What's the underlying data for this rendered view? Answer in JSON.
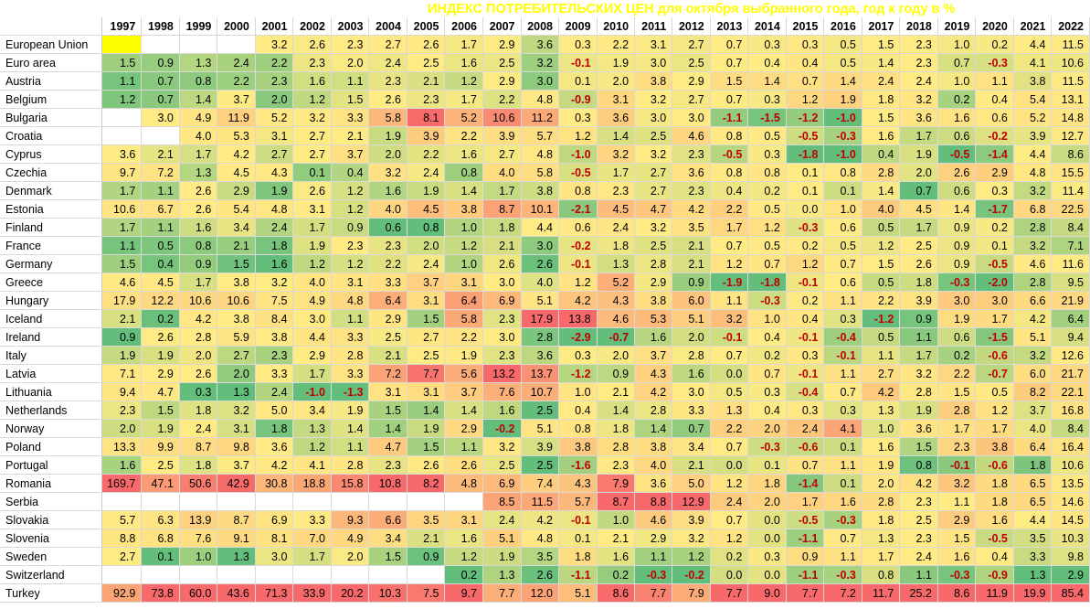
{
  "chart_data": {
    "type": "table",
    "title": "ИНДЕКС ПОТРЕБИТЕЛЬСКИХ ЦЕН для октября выбранного года, год к году в %",
    "years": [
      "1997",
      "1998",
      "1999",
      "2000",
      "2001",
      "2002",
      "2003",
      "2004",
      "2005",
      "2006",
      "2007",
      "2008",
      "2009",
      "2010",
      "2011",
      "2012",
      "2013",
      "2014",
      "2015",
      "2016",
      "2017",
      "2018",
      "2019",
      "2020",
      "2021",
      "2022"
    ],
    "rows": [
      {
        "country": "European Union",
        "values": [
          "",
          "",
          "",
          "",
          "3.2",
          "2.6",
          "2.3",
          "2.7",
          "2.6",
          "1.7",
          "2.9",
          "3.6",
          "0.3",
          "2.2",
          "3.1",
          "2.7",
          "0.7",
          "0.3",
          "0.3",
          "0.5",
          "1.5",
          "2.3",
          "1.0",
          "0.2",
          "4.4",
          "11.5"
        ]
      },
      {
        "country": "Euro area",
        "values": [
          "1.5",
          "0.9",
          "1.3",
          "2.4",
          "2.2",
          "2.3",
          "2.0",
          "2.4",
          "2.5",
          "1.6",
          "2.5",
          "3.2",
          "-0.1",
          "1.9",
          "3.0",
          "2.5",
          "0.7",
          "0.4",
          "0.4",
          "0.5",
          "1.4",
          "2.3",
          "0.7",
          "-0.3",
          "4.1",
          "10.6"
        ]
      },
      {
        "country": "Austria",
        "values": [
          "1.1",
          "0.7",
          "0.8",
          "2.2",
          "2.3",
          "1.6",
          "1.1",
          "2.3",
          "2.1",
          "1.2",
          "2.9",
          "3.0",
          "0.1",
          "2.0",
          "3.8",
          "2.9",
          "1.5",
          "1.4",
          "0.7",
          "1.4",
          "2.4",
          "2.4",
          "1.0",
          "1.1",
          "3.8",
          "11.5"
        ]
      },
      {
        "country": "Belgium",
        "values": [
          "1.2",
          "0.7",
          "1.4",
          "3.7",
          "2.0",
          "1.2",
          "1.5",
          "2.6",
          "2.3",
          "1.7",
          "2.2",
          "4.8",
          "-0.9",
          "3.1",
          "3.2",
          "2.7",
          "0.7",
          "0.3",
          "1.2",
          "1.9",
          "1.8",
          "3.2",
          "0.2",
          "0.4",
          "5.4",
          "13.1"
        ]
      },
      {
        "country": "Bulgaria",
        "values": [
          "",
          "3.0",
          "4.9",
          "11.9",
          "5.2",
          "3.2",
          "3.3",
          "5.8",
          "8.1",
          "5.2",
          "10.6",
          "11.2",
          "0.3",
          "3.6",
          "3.0",
          "3.0",
          "-1.1",
          "-1.5",
          "-1.2",
          "-1.0",
          "1.5",
          "3.6",
          "1.6",
          "0.6",
          "5.2",
          "14.8"
        ]
      },
      {
        "country": "Croatia",
        "values": [
          "",
          "",
          "4.0",
          "5.3",
          "3.1",
          "2.7",
          "2.1",
          "1.9",
          "3.9",
          "2.2",
          "3.9",
          "5.7",
          "1.2",
          "1.4",
          "2.5",
          "4.6",
          "0.8",
          "0.5",
          "-0.5",
          "-0.3",
          "1.6",
          "1.7",
          "0.6",
          "-0.2",
          "3.9",
          "12.7"
        ]
      },
      {
        "country": "Cyprus",
        "values": [
          "3.6",
          "2.1",
          "1.7",
          "4.2",
          "2.7",
          "2.7",
          "3.7",
          "2.0",
          "2.2",
          "1.6",
          "2.7",
          "4.8",
          "-1.0",
          "3.2",
          "3.2",
          "2.3",
          "-0.5",
          "0.3",
          "-1.8",
          "-1.0",
          "0.4",
          "1.9",
          "-0.5",
          "-1.4",
          "4.4",
          "8.6"
        ]
      },
      {
        "country": "Czechia",
        "values": [
          "9.7",
          "7.2",
          "1.3",
          "4.5",
          "4.3",
          "0.1",
          "0.4",
          "3.2",
          "2.4",
          "0.8",
          "4.0",
          "5.8",
          "-0.5",
          "1.7",
          "2.7",
          "3.6",
          "0.8",
          "0.8",
          "0.1",
          "0.8",
          "2.8",
          "2.0",
          "2.6",
          "2.9",
          "4.8",
          "15.5"
        ]
      },
      {
        "country": "Denmark",
        "values": [
          "1.7",
          "1.1",
          "2.6",
          "2.9",
          "1.9",
          "2.6",
          "1.2",
          "1.6",
          "1.9",
          "1.4",
          "1.7",
          "3.8",
          "0.8",
          "2.3",
          "2.7",
          "2.3",
          "0.4",
          "0.2",
          "0.1",
          "0.1",
          "1.4",
          "0.7",
          "0.6",
          "0.3",
          "3.2",
          "11.4"
        ]
      },
      {
        "country": "Estonia",
        "values": [
          "10.6",
          "6.7",
          "2.6",
          "5.4",
          "4.8",
          "3.1",
          "1.2",
          "4.0",
          "4.5",
          "3.8",
          "8.7",
          "10.1",
          "-2.1",
          "4.5",
          "4.7",
          "4.2",
          "2.2",
          "0.5",
          "0.0",
          "1.0",
          "4.0",
          "4.5",
          "1.4",
          "-1.7",
          "6.8",
          "22.5"
        ]
      },
      {
        "country": "Finland",
        "values": [
          "1.7",
          "1.1",
          "1.6",
          "3.4",
          "2.4",
          "1.7",
          "0.9",
          "0.6",
          "0.8",
          "1.0",
          "1.8",
          "4.4",
          "0.6",
          "2.4",
          "3.2",
          "3.5",
          "1.7",
          "1.2",
          "-0.3",
          "0.6",
          "0.5",
          "1.7",
          "0.9",
          "0.2",
          "2.8",
          "8.4"
        ]
      },
      {
        "country": "France",
        "values": [
          "1.1",
          "0.5",
          "0.8",
          "2.1",
          "1.8",
          "1.9",
          "2.3",
          "2.3",
          "2.0",
          "1.2",
          "2.1",
          "3.0",
          "-0.2",
          "1.8",
          "2.5",
          "2.1",
          "0.7",
          "0.5",
          "0.2",
          "0.5",
          "1.2",
          "2.5",
          "0.9",
          "0.1",
          "3.2",
          "7.1"
        ]
      },
      {
        "country": "Germany",
        "values": [
          "1.5",
          "0.4",
          "0.9",
          "1.5",
          "1.6",
          "1.2",
          "1.2",
          "2.2",
          "2.4",
          "1.0",
          "2.6",
          "2.6",
          "-0.1",
          "1.3",
          "2.8",
          "2.1",
          "1.2",
          "0.7",
          "1.2",
          "0.7",
          "1.5",
          "2.6",
          "0.9",
          "-0.5",
          "4.6",
          "11.6"
        ]
      },
      {
        "country": "Greece",
        "values": [
          "4.6",
          "4.5",
          "1.7",
          "3.8",
          "3.2",
          "4.0",
          "3.1",
          "3.3",
          "3.7",
          "3.1",
          "3.0",
          "4.0",
          "1.2",
          "5.2",
          "2.9",
          "0.9",
          "-1.9",
          "-1.8",
          "-0.1",
          "0.6",
          "0.5",
          "1.8",
          "-0.3",
          "-2.0",
          "2.8",
          "9.5"
        ]
      },
      {
        "country": "Hungary",
        "values": [
          "17.9",
          "12.2",
          "10.6",
          "10.6",
          "7.5",
          "4.9",
          "4.8",
          "6.4",
          "3.1",
          "6.4",
          "6.9",
          "5.1",
          "4.2",
          "4.3",
          "3.8",
          "6.0",
          "1.1",
          "-0.3",
          "0.2",
          "1.1",
          "2.2",
          "3.9",
          "3.0",
          "3.0",
          "6.6",
          "21.9"
        ]
      },
      {
        "country": "Iceland",
        "values": [
          "2.1",
          "0.2",
          "4.2",
          "3.8",
          "8.4",
          "3.0",
          "1.1",
          "2.9",
          "1.5",
          "5.8",
          "2.3",
          "17.9",
          "13.8",
          "4.6",
          "5.3",
          "5.1",
          "3.2",
          "1.0",
          "0.4",
          "0.3",
          "-1.2",
          "0.9",
          "1.9",
          "1.7",
          "4.2",
          "6.4"
        ]
      },
      {
        "country": "Ireland",
        "values": [
          "0.9",
          "2.6",
          "2.8",
          "5.9",
          "3.8",
          "4.4",
          "3.3",
          "2.5",
          "2.7",
          "2.2",
          "3.0",
          "2.8",
          "-2.9",
          "-0.7",
          "1.6",
          "2.0",
          "-0.1",
          "0.4",
          "-0.1",
          "-0.4",
          "0.5",
          "1.1",
          "0.6",
          "-1.5",
          "5.1",
          "9.4"
        ]
      },
      {
        "country": "Italy",
        "values": [
          "1.9",
          "1.9",
          "2.0",
          "2.7",
          "2.3",
          "2.9",
          "2.8",
          "2.1",
          "2.5",
          "1.9",
          "2.3",
          "3.6",
          "0.3",
          "2.0",
          "3.7",
          "2.8",
          "0.7",
          "0.2",
          "0.3",
          "-0.1",
          "1.1",
          "1.7",
          "0.2",
          "-0.6",
          "3.2",
          "12.6"
        ]
      },
      {
        "country": "Latvia",
        "values": [
          "7.1",
          "2.9",
          "2.6",
          "2.0",
          "3.3",
          "1.7",
          "3.3",
          "7.2",
          "7.7",
          "5.6",
          "13.2",
          "13.7",
          "-1.2",
          "0.9",
          "4.3",
          "1.6",
          "0.0",
          "0.7",
          "-0.1",
          "1.1",
          "2.7",
          "3.2",
          "2.2",
          "-0.7",
          "6.0",
          "21.7"
        ]
      },
      {
        "country": "Lithuania",
        "values": [
          "9.4",
          "4.7",
          "0.3",
          "1.3",
          "2.4",
          "-1.0",
          "-1.3",
          "3.1",
          "3.1",
          "3.7",
          "7.6",
          "10.7",
          "1.0",
          "2.1",
          "4.2",
          "3.0",
          "0.5",
          "0.3",
          "-0.4",
          "0.7",
          "4.2",
          "2.8",
          "1.5",
          "0.5",
          "8.2",
          "22.1"
        ]
      },
      {
        "country": "Netherlands",
        "values": [
          "2.3",
          "1.5",
          "1.8",
          "3.2",
          "5.0",
          "3.4",
          "1.9",
          "1.5",
          "1.4",
          "1.4",
          "1.6",
          "2.5",
          "0.4",
          "1.4",
          "2.8",
          "3.3",
          "1.3",
          "0.4",
          "0.3",
          "0.3",
          "1.3",
          "1.9",
          "2.8",
          "1.2",
          "3.7",
          "16.8"
        ]
      },
      {
        "country": "Norway",
        "values": [
          "2.0",
          "1.9",
          "2.4",
          "3.1",
          "1.8",
          "1.3",
          "1.4",
          "1.4",
          "1.9",
          "2.9",
          "-0.2",
          "5.1",
          "0.8",
          "1.8",
          "1.4",
          "0.7",
          "2.2",
          "2.0",
          "2.4",
          "4.1",
          "1.0",
          "3.6",
          "1.7",
          "1.7",
          "4.0",
          "8.4"
        ]
      },
      {
        "country": "Poland",
        "values": [
          "13.3",
          "9.9",
          "8.7",
          "9.8",
          "3.6",
          "1.2",
          "1.1",
          "4.7",
          "1.5",
          "1.1",
          "3.2",
          "3.9",
          "3.8",
          "2.8",
          "3.8",
          "3.4",
          "0.7",
          "-0.3",
          "-0.6",
          "0.1",
          "1.6",
          "1.5",
          "2.3",
          "3.8",
          "6.4",
          "16.4"
        ]
      },
      {
        "country": "Portugal",
        "values": [
          "1.6",
          "2.5",
          "1.8",
          "3.7",
          "4.2",
          "4.1",
          "2.8",
          "2.3",
          "2.6",
          "2.6",
          "2.5",
          "2.5",
          "-1.6",
          "2.3",
          "4.0",
          "2.1",
          "0.0",
          "0.1",
          "0.7",
          "1.1",
          "1.9",
          "0.8",
          "-0.1",
          "-0.6",
          "1.8",
          "10.6"
        ]
      },
      {
        "country": "Romania",
        "values": [
          "169.7",
          "47.1",
          "50.6",
          "42.9",
          "30.8",
          "18.8",
          "15.8",
          "10.8",
          "8.2",
          "4.8",
          "6.9",
          "7.4",
          "4.3",
          "7.9",
          "3.6",
          "5.0",
          "1.2",
          "1.8",
          "-1.4",
          "0.1",
          "2.0",
          "4.2",
          "3.2",
          "1.8",
          "6.5",
          "13.5"
        ]
      },
      {
        "country": "Serbia",
        "values": [
          "",
          "",
          "",
          "",
          "",
          "",
          "",
          "",
          "",
          "",
          "8.5",
          "11.5",
          "5.7",
          "8.7",
          "8.8",
          "12.9",
          "2.4",
          "2.0",
          "1.7",
          "1.6",
          "2.8",
          "2.3",
          "1.1",
          "1.8",
          "6.5",
          "14.6"
        ]
      },
      {
        "country": "Slovakia",
        "values": [
          "5.7",
          "6.3",
          "13.9",
          "8.7",
          "6.9",
          "3.3",
          "9.3",
          "6.6",
          "3.5",
          "3.1",
          "2.4",
          "4.2",
          "-0.1",
          "1.0",
          "4.6",
          "3.9",
          "0.7",
          "0.0",
          "-0.5",
          "-0.3",
          "1.8",
          "2.5",
          "2.9",
          "1.6",
          "4.4",
          "14.5"
        ]
      },
      {
        "country": "Slovenia",
        "values": [
          "8.8",
          "6.8",
          "7.6",
          "9.1",
          "8.1",
          "7.0",
          "4.9",
          "3.4",
          "2.1",
          "1.6",
          "5.1",
          "4.8",
          "0.1",
          "2.1",
          "2.9",
          "3.2",
          "1.2",
          "0.0",
          "-1.1",
          "0.7",
          "1.3",
          "2.3",
          "1.5",
          "-0.5",
          "3.5",
          "10.3"
        ]
      },
      {
        "country": "Sweden",
        "values": [
          "2.7",
          "0.1",
          "1.0",
          "1.3",
          "3.0",
          "1.7",
          "2.0",
          "1.5",
          "0.9",
          "1.2",
          "1.9",
          "3.5",
          "1.8",
          "1.6",
          "1.1",
          "1.2",
          "0.2",
          "0.3",
          "0.9",
          "1.1",
          "1.7",
          "2.4",
          "1.6",
          "0.4",
          "3.3",
          "9.8"
        ]
      },
      {
        "country": "Switzerland",
        "values": [
          "",
          "",
          "",
          "",
          "",
          "",
          "",
          "",
          "",
          "0.2",
          "1.3",
          "2.6",
          "-1.1",
          "0.2",
          "-0.3",
          "-0.2",
          "0.0",
          "0.0",
          "-1.1",
          "-0.3",
          "0.8",
          "1.1",
          "-0.3",
          "-0.9",
          "1.3",
          "2.9"
        ]
      },
      {
        "country": "Turkey",
        "values": [
          "92.9",
          "73.8",
          "60.0",
          "43.6",
          "71.3",
          "33.9",
          "20.2",
          "10.3",
          "7.5",
          "9.7",
          "7.7",
          "12.0",
          "5.1",
          "8.6",
          "7.7",
          "7.9",
          "7.7",
          "9.0",
          "7.7",
          "7.2",
          "11.7",
          "25.2",
          "8.6",
          "11.9",
          "19.9",
          "85.4"
        ]
      }
    ]
  }
}
